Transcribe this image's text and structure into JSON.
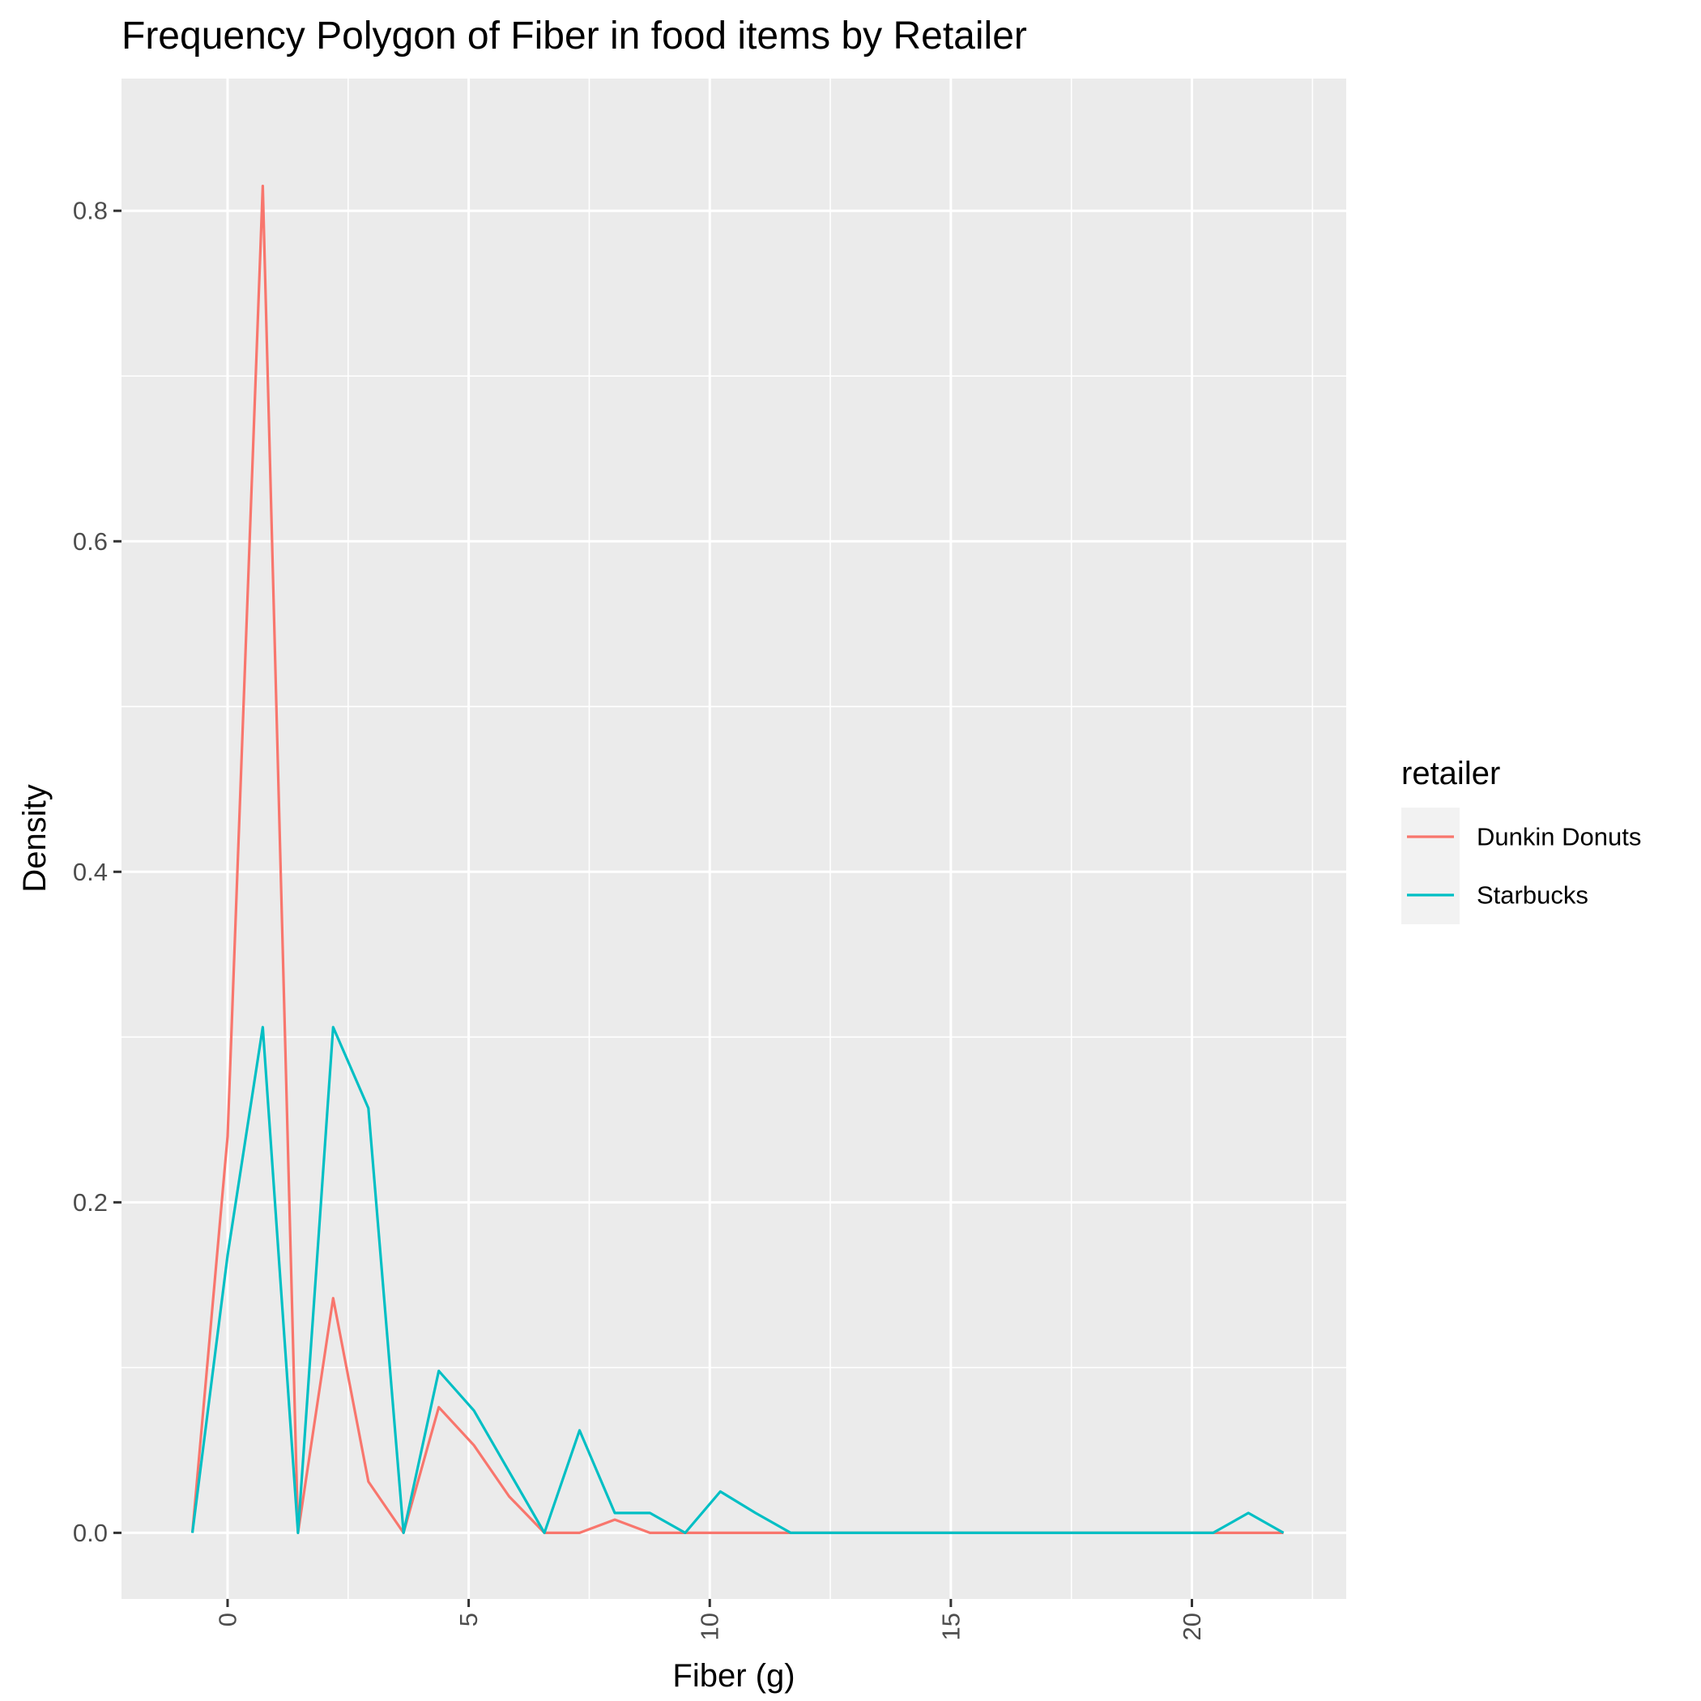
{
  "chart_data": {
    "type": "line",
    "title": "Frequency Polygon of Fiber in food items by Retailer",
    "xlabel": "Fiber (g)",
    "ylabel": "Density",
    "xlim": [
      -2.2,
      23.2
    ],
    "ylim": [
      -0.04,
      0.88
    ],
    "x_ticks": [
      0,
      5,
      10,
      15,
      20
    ],
    "x_tick_labels": [
      "0",
      "5",
      "10",
      "15",
      "20"
    ],
    "y_ticks": [
      0.0,
      0.2,
      0.4,
      0.6,
      0.8
    ],
    "y_tick_labels": [
      "0.0",
      "0.2",
      "0.4",
      "0.6",
      "0.8"
    ],
    "grid": true,
    "legend": {
      "title": "retailer",
      "position": "right"
    },
    "x": [
      -0.73,
      0,
      0.73,
      1.46,
      2.19,
      2.92,
      3.65,
      4.38,
      5.11,
      5.84,
      6.57,
      7.3,
      8.03,
      8.76,
      9.49,
      10.22,
      10.95,
      11.68,
      12.41,
      13.14,
      13.87,
      14.6,
      15.33,
      16.06,
      16.79,
      17.52,
      18.25,
      18.98,
      19.71,
      20.44,
      21.17,
      21.9
    ],
    "series": [
      {
        "name": "Dunkin Donuts",
        "color": "#F8766D",
        "values": [
          0,
          0.24,
          0.815,
          0,
          0.142,
          0.031,
          0,
          0.076,
          0.053,
          0.022,
          0,
          0,
          0.008,
          0,
          0,
          0,
          0,
          0,
          0,
          0,
          0,
          0,
          0,
          0,
          0,
          0,
          0,
          0,
          0,
          0,
          0,
          0
        ]
      },
      {
        "name": "Starbucks",
        "color": "#00BFC4",
        "values": [
          0,
          0.168,
          0.306,
          0,
          0.306,
          0.257,
          0,
          0.098,
          0.074,
          0.037,
          0,
          0.062,
          0.012,
          0.012,
          0,
          0.025,
          0.012,
          0,
          0,
          0,
          0,
          0,
          0,
          0,
          0,
          0,
          0,
          0,
          0,
          0,
          0.012,
          0
        ]
      }
    ]
  }
}
